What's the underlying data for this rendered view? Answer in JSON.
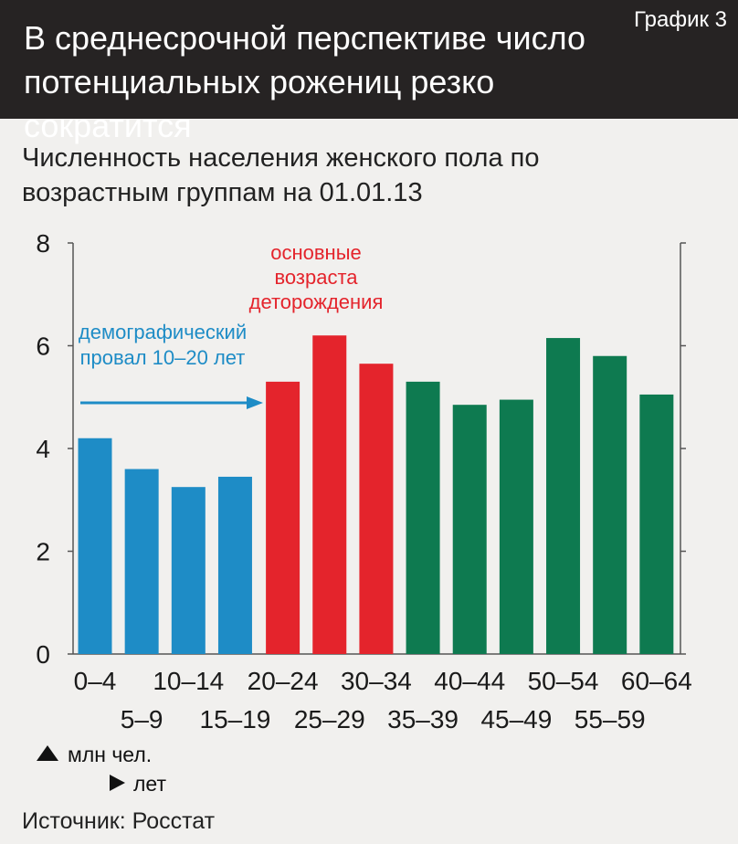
{
  "header": {
    "title": "В среднесрочной перспективе число потенциальных рожениц резко сократится",
    "tag": "График 3"
  },
  "subtitle": "Численность населения женского пола по возрастным группам на 01.01.13",
  "source": "Источник: Росстат",
  "annotations": {
    "reproductive": [
      "основные",
      "возраста",
      "деторождения"
    ],
    "gap": [
      "демографический",
      "провал 10–20 лет"
    ]
  },
  "legend": {
    "y_unit": "млн чел.",
    "x_unit": "лет"
  },
  "colors": {
    "blue": "#1e8cc6",
    "red": "#e4242c",
    "green": "#0e7a50",
    "annotation_red": "#e4242c",
    "annotation_blue": "#1e8cc6",
    "header_bg": "#262323"
  },
  "chart_data": {
    "type": "bar",
    "categories": [
      "0–4",
      "5–9",
      "10–14",
      "15–19",
      "20–24",
      "25–29",
      "30–34",
      "35–39",
      "40–44",
      "45–49",
      "50–54",
      "55–59",
      "60–64"
    ],
    "values": [
      4.2,
      3.6,
      3.25,
      3.45,
      5.3,
      6.2,
      5.65,
      5.3,
      4.85,
      4.95,
      6.15,
      5.8,
      5.05
    ],
    "bar_colors": [
      "blue",
      "blue",
      "blue",
      "blue",
      "red",
      "red",
      "red",
      "green",
      "green",
      "green",
      "green",
      "green",
      "green"
    ],
    "ylim": [
      0,
      8
    ],
    "yticks": [
      0,
      2,
      4,
      6,
      8
    ],
    "grid": false
  }
}
